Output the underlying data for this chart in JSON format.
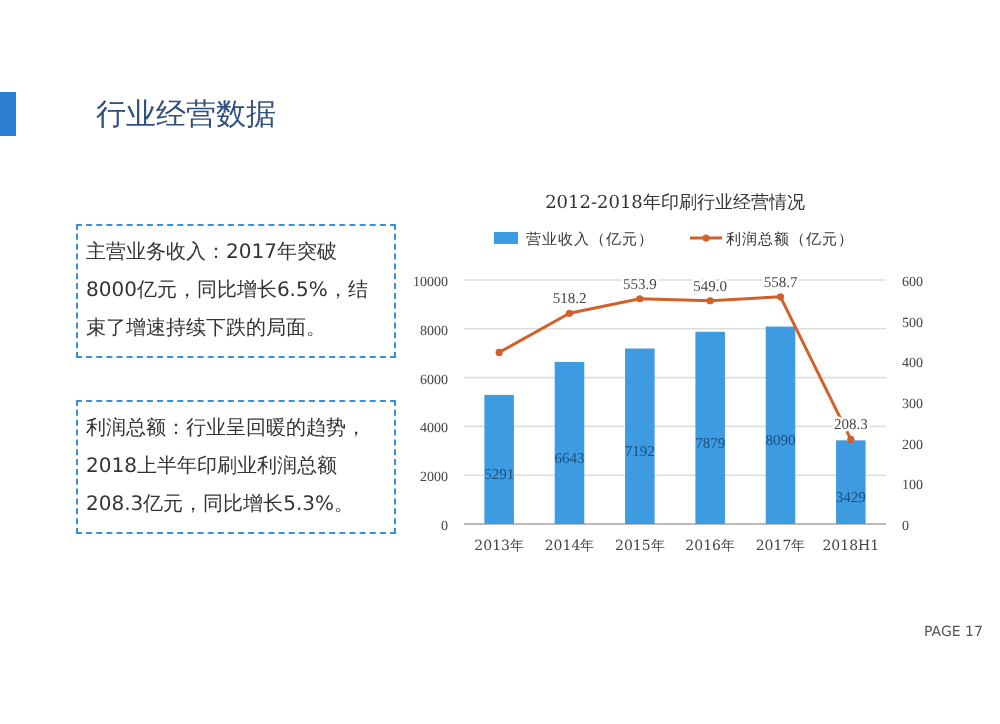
{
  "chart_data": [
    {
      "type": "other",
      "title": "行业经营数据",
      "annotations": [
        "主营业务收入：2017年突破8000亿元，同比增长6.5%，结束了增速持续下跌的局面。",
        "利润总额：行业呈回暖的趋势，2018上半年印刷业利润总额208.3亿元，同比增长5.3%。",
        "PAGE 17"
      ]
    },
    {
      "type": "bar",
      "title": "2012-2018年印刷行业经营情况",
      "categories": [
        "2013年",
        "2014年",
        "2015年",
        "2016年",
        "2017年",
        "2018H1"
      ],
      "series": [
        {
          "name": "营业收入（亿元）",
          "type": "bar",
          "color": "#3d9be2",
          "values": [
            5291,
            6643,
            7192,
            7879,
            8090,
            3429
          ],
          "value_labels": [
            "5291",
            "6643",
            "7192",
            "7879",
            "8090",
            "3429"
          ]
        },
        {
          "name": "利润总额（亿元）",
          "type": "line",
          "axis": "y2",
          "color": "#d2602a",
          "values": [
            422,
            518.2,
            553.9,
            549.0,
            558.7,
            208.3
          ],
          "value_labels": [
            null,
            "518.2",
            "553.9",
            "549.0",
            "558.7",
            "208.3"
          ]
        }
      ],
      "ylim": [
        0,
        10000
      ],
      "yticks": [
        0,
        2000,
        4000,
        6000,
        8000,
        10000
      ],
      "y2lim": [
        0,
        600
      ],
      "y2ticks": [
        0,
        100,
        200,
        300,
        400,
        500,
        600
      ],
      "grid": "y",
      "legend": "top",
      "marker": "circle"
    }
  ]
}
